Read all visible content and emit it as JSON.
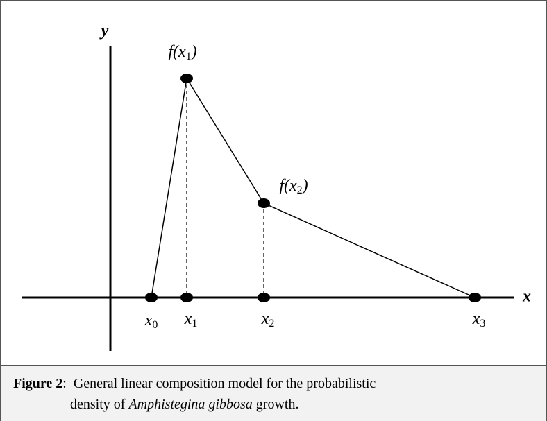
{
  "axes": {
    "x": "x",
    "y": "y"
  },
  "function_labels": [
    {
      "prefix": "f(x",
      "sub": "1",
      "suffix": ")"
    },
    {
      "prefix": "f(x",
      "sub": "2",
      "suffix": ")"
    }
  ],
  "x_labels": [
    {
      "base": "x",
      "sub": "0"
    },
    {
      "base": "x",
      "sub": "1"
    },
    {
      "base": "x",
      "sub": "2"
    },
    {
      "base": "x",
      "sub": "3"
    }
  ],
  "caption": {
    "label": "Figure 2",
    "line1": ":  General linear composition model for the probabilistic",
    "line2_start": "density of ",
    "species": "Amphistegina gibbosa",
    "line2_end": " growth."
  }
}
